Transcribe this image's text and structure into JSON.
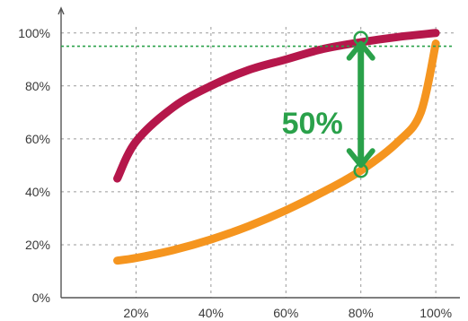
{
  "colors": {
    "upper_curve": "#b5174b",
    "lower_curve": "#f5951f",
    "annotation": "#2aa14a",
    "grid": "#9a9a9a",
    "axis": "#555555"
  },
  "annotation": {
    "text": "50%",
    "x": 80,
    "y_top": 98,
    "y_bottom": 48,
    "reference_y": 95
  },
  "chart_data": {
    "type": "line",
    "title": "",
    "xlabel": "",
    "ylabel": "",
    "xlim": [
      0,
      105
    ],
    "ylim": [
      0,
      105
    ],
    "grid": true,
    "x_ticks": [
      20,
      40,
      60,
      80,
      100
    ],
    "y_ticks": [
      0,
      20,
      40,
      60,
      80,
      100
    ],
    "x_tick_labels": [
      "20%",
      "40%",
      "60%",
      "80%",
      "100%"
    ],
    "y_tick_labels": [
      "0%",
      "20%",
      "40%",
      "60%",
      "80%",
      "100%"
    ],
    "series": [
      {
        "color": "#b5174b",
        "x": [
          15,
          20,
          30,
          40,
          50,
          60,
          70,
          80,
          90,
          100
        ],
        "y": [
          45,
          59,
          72,
          80,
          86,
          90,
          94,
          96.5,
          98.5,
          100
        ]
      },
      {
        "color": "#f5951f",
        "x": [
          15,
          20,
          30,
          40,
          50,
          60,
          70,
          80,
          90,
          96,
          100
        ],
        "y": [
          14,
          15,
          18,
          22,
          27,
          33,
          40,
          48,
          59,
          70,
          96
        ]
      }
    ]
  }
}
